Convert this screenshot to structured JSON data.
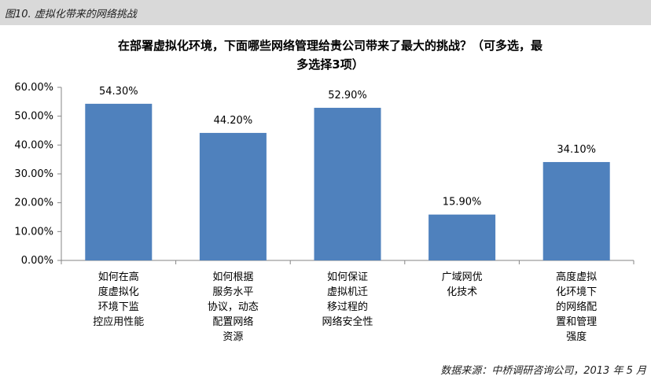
{
  "header": {
    "title": "图10.  虚拟化带来的网络挑战"
  },
  "footer": {
    "source": "数据来源：中桥调研咨询公司，2013 年 5 月"
  },
  "colors": {
    "bar": "#4f81bd",
    "header_bg": "#d9d9d9",
    "axis": "#868686"
  },
  "chart_data": {
    "type": "bar",
    "title_lines": [
      "在部署虚拟化环境，下面哪些网络管理给贵公司带来了最大的挑战？（可多选，最",
      "多选择3项）"
    ],
    "categories": [
      [
        "如何在高",
        "度虚拟化",
        "环境下监",
        "控应用性能"
      ],
      [
        "如何根据",
        "服务水平",
        "协议，动态",
        "配置网络",
        "资源"
      ],
      [
        "如何保证",
        "虚拟机迁",
        "移过程的",
        "网络安全性"
      ],
      [
        "广域网优",
        "化技术"
      ],
      [
        "高度虚拟",
        "化环境下",
        "的网络配",
        "置和管理",
        "强度"
      ]
    ],
    "values": [
      54.3,
      44.2,
      52.9,
      15.9,
      34.1
    ],
    "value_labels": [
      "54.30%",
      "44.20%",
      "52.90%",
      "15.90%",
      "34.10%"
    ],
    "ylim": [
      0,
      60
    ],
    "yticks": [
      {
        "value": 0,
        "label": "0.00%"
      },
      {
        "value": 10,
        "label": "10.00%"
      },
      {
        "value": 20,
        "label": "20.00%"
      },
      {
        "value": 30,
        "label": "30.00%"
      },
      {
        "value": 40,
        "label": "40.00%"
      },
      {
        "value": 50,
        "label": "50.00%"
      },
      {
        "value": 60,
        "label": "60.00%"
      }
    ],
    "grid": false,
    "legend": "none"
  }
}
